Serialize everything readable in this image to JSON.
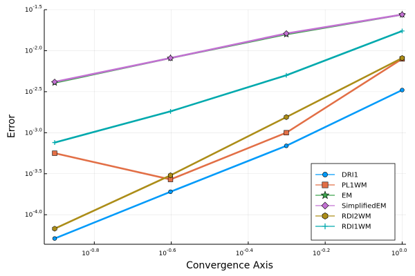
{
  "chart_data": {
    "type": "line",
    "title": "",
    "xlabel": "Convergence Axis",
    "ylabel": "Error",
    "xscale": "log10",
    "yscale": "log10",
    "xlim_log10": [
      -0.93,
      0.01
    ],
    "ylim_log10": [
      -4.36,
      -1.5
    ],
    "x_tick_exponents": [
      "-0.8",
      "-0.6",
      "-0.4",
      "-0.2",
      "0.0"
    ],
    "x_tick_log10": [
      -0.8,
      -0.6,
      -0.4,
      -0.2,
      0.0
    ],
    "y_tick_exponents": [
      "-4.0",
      "-3.5",
      "-3.0",
      "-2.5",
      "-2.0",
      "-1.5"
    ],
    "y_tick_log10": [
      -4.0,
      -3.5,
      -3.0,
      -2.5,
      -2.0,
      -1.5
    ],
    "tick_base": "10",
    "grid": true,
    "legend_position": "bottom-right",
    "x_log10": [
      -0.903,
      -0.602,
      -0.301,
      0.0
    ],
    "series": [
      {
        "name": "DRI1",
        "color": "#009af9",
        "marker": "circle",
        "y_log10": [
          -4.29,
          -3.72,
          -3.16,
          -2.48
        ]
      },
      {
        "name": "PL1WM",
        "color": "#e26f46",
        "marker": "square",
        "y_log10": [
          -3.25,
          -3.57,
          -3.0,
          -2.1
        ]
      },
      {
        "name": "EM",
        "color": "#3da44d",
        "marker": "star",
        "y_log10": [
          -2.39,
          -2.09,
          -1.8,
          -1.56
        ]
      },
      {
        "name": "SimplifiedEM",
        "color": "#c271d2",
        "marker": "diamond",
        "y_log10": [
          -2.38,
          -2.09,
          -1.79,
          -1.56
        ]
      },
      {
        "name": "RDI2WM",
        "color": "#ac8d18",
        "marker": "hexagon",
        "y_log10": [
          -4.17,
          -3.52,
          -2.81,
          -2.09
        ]
      },
      {
        "name": "RDI1WM",
        "color": "#00a9ad",
        "marker": "cross",
        "y_log10": [
          -3.12,
          -2.74,
          -2.3,
          -1.76
        ]
      }
    ]
  }
}
